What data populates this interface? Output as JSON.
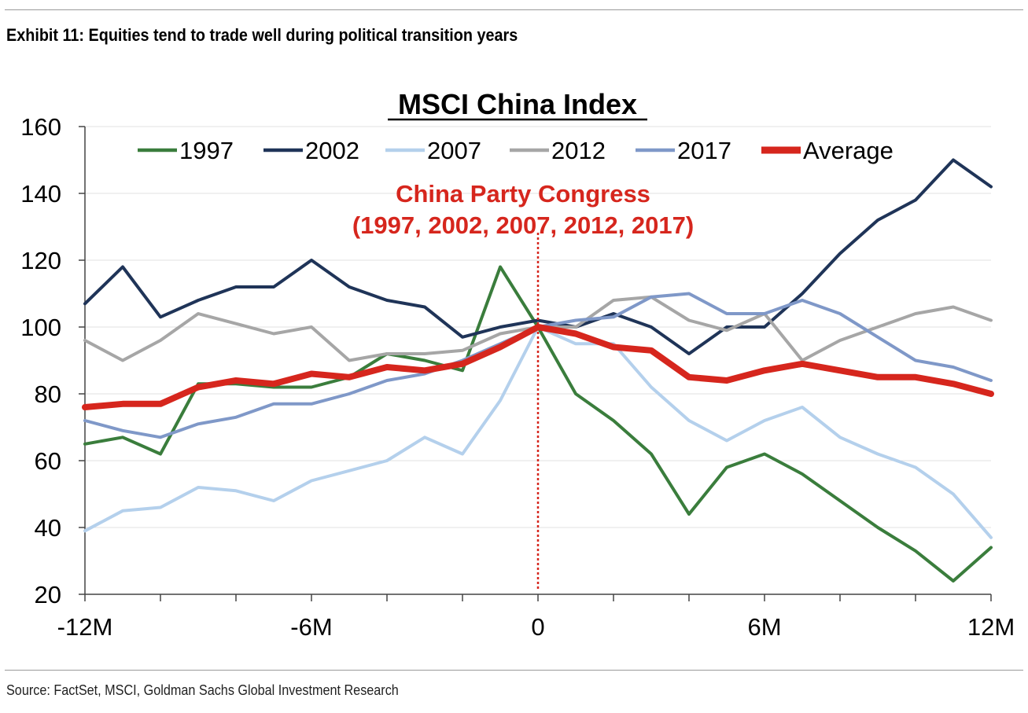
{
  "exhibit_title": "Exhibit 11: Equities tend to trade well during political transition years",
  "source": "Source: FactSet, MSCI, Goldman Sachs Global Investment Research",
  "chart_data": {
    "type": "line",
    "title": "MSCI China Index",
    "xlabel": "",
    "ylabel": "",
    "xlim": [
      -12,
      12
    ],
    "ylim": [
      20,
      160
    ],
    "x_ticks": [
      -12,
      -6,
      0,
      6,
      12
    ],
    "x_tick_labels": [
      "-12M",
      "-6M",
      "0",
      "6M",
      "12M"
    ],
    "y_ticks": [
      20,
      40,
      60,
      80,
      100,
      120,
      140,
      160
    ],
    "y_tick_labels": [
      "20",
      "40",
      "60",
      "80",
      "100",
      "120",
      "140",
      "160"
    ],
    "grid": "horizontal",
    "legend_position": "top",
    "annotation": {
      "line1": "China Party Congress",
      "line2": "(1997, 2002, 2007, 2012, 2017)",
      "x": 0,
      "color": "#d6261d"
    },
    "x": [
      -12,
      -11,
      -10,
      -9,
      -8,
      -7,
      -6,
      -5,
      -4,
      -3,
      -2,
      -1,
      0,
      1,
      2,
      3,
      4,
      5,
      6,
      7,
      8,
      9,
      10,
      11,
      12
    ],
    "series": [
      {
        "name": "1997",
        "color": "#3a7d3c",
        "values": [
          65,
          67,
          62,
          83,
          83,
          82,
          82,
          85,
          92,
          90,
          87,
          118,
          100,
          80,
          72,
          62,
          44,
          58,
          62,
          56,
          48,
          40,
          33,
          24,
          34
        ]
      },
      {
        "name": "2002",
        "color": "#1f3458",
        "values": [
          107,
          118,
          103,
          108,
          112,
          112,
          120,
          112,
          108,
          106,
          97,
          100,
          102,
          100,
          104,
          100,
          92,
          100,
          100,
          110,
          122,
          132,
          138,
          150,
          142
        ]
      },
      {
        "name": "2007",
        "color": "#b4d0ec",
        "values": [
          39,
          45,
          46,
          52,
          51,
          48,
          54,
          57,
          60,
          67,
          62,
          78,
          100,
          95,
          95,
          82,
          72,
          66,
          72,
          76,
          67,
          62,
          58,
          50,
          37
        ]
      },
      {
        "name": "2012",
        "color": "#a6a6a6",
        "values": [
          96,
          90,
          96,
          104,
          101,
          98,
          100,
          90,
          92,
          92,
          93,
          98,
          100,
          100,
          108,
          109,
          102,
          99,
          104,
          90,
          96,
          100,
          104,
          106,
          102
        ]
      },
      {
        "name": "2017",
        "color": "#7f98c8",
        "values": [
          72,
          69,
          67,
          71,
          73,
          77,
          77,
          80,
          84,
          86,
          90,
          95,
          100,
          102,
          103,
          109,
          110,
          104,
          104,
          108,
          104,
          97,
          90,
          88,
          84
        ]
      },
      {
        "name": "Average",
        "color": "#d6261d",
        "values": [
          76,
          77,
          77,
          82,
          84,
          83,
          86,
          85,
          88,
          87,
          89,
          94,
          100,
          98,
          94,
          93,
          85,
          84,
          87,
          89,
          87,
          85,
          85,
          83,
          80
        ]
      }
    ]
  }
}
